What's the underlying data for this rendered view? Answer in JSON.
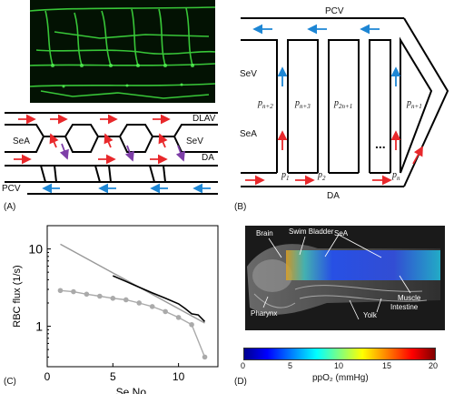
{
  "panels": {
    "a": {
      "label": "(A)",
      "vessels": [
        "DLAV",
        "SeA",
        "SeV",
        "DA",
        "PCV"
      ]
    },
    "b": {
      "label": "(B)",
      "vessels": [
        "PCV",
        "SeV",
        "SeA",
        "DA"
      ],
      "nodes": [
        "p_{n+2}",
        "p_{n+3}",
        "p_{2n+1}",
        "p_{n+1}",
        "p_1",
        "p_2",
        "p_n"
      ],
      "ellipsis": "..."
    },
    "c": {
      "label": "(C)"
    },
    "d": {
      "label": "(D)",
      "annotations": [
        "Brain",
        "Swim Bladder",
        "SeA",
        "Muscle",
        "Pharynx",
        "Yolk",
        "Intestine"
      ],
      "colorbar_ticks": [
        "0",
        "5",
        "10",
        "15",
        "20"
      ],
      "colorbar_label": "ppO₂ (mmHg)",
      "colors": [
        "#00008f",
        "#0000ff",
        "#00ffff",
        "#ffff00",
        "#ff0000",
        "#800000"
      ]
    }
  },
  "chart_data": {
    "type": "line",
    "xlabel": "Se No.",
    "ylabel": "RBC flux (1/s)",
    "xlim": [
      0,
      13
    ],
    "ylim": [
      0.3,
      20
    ],
    "yscale": "log",
    "xticks": [
      0,
      5,
      10
    ],
    "yticks": [
      1,
      10
    ],
    "series": [
      {
        "color": "#999999",
        "marker": "none",
        "x": [
          1,
          12
        ],
        "y": [
          11.5,
          1.1
        ]
      },
      {
        "color": "#000000",
        "marker": "none",
        "x": [
          5,
          6,
          7,
          8,
          9,
          10,
          10.5,
          11,
          11.5,
          12
        ],
        "y": [
          4.5,
          3.8,
          3.2,
          2.7,
          2.3,
          1.95,
          1.7,
          1.45,
          1.4,
          1.15
        ]
      },
      {
        "color": "#aaaaaa",
        "marker": "circle",
        "x": [
          1,
          2,
          3,
          4,
          5,
          6,
          7,
          8,
          9,
          10,
          11,
          12
        ],
        "y": [
          2.9,
          2.8,
          2.6,
          2.45,
          2.3,
          2.2,
          2.0,
          1.8,
          1.55,
          1.3,
          1.05,
          0.4
        ]
      }
    ]
  }
}
